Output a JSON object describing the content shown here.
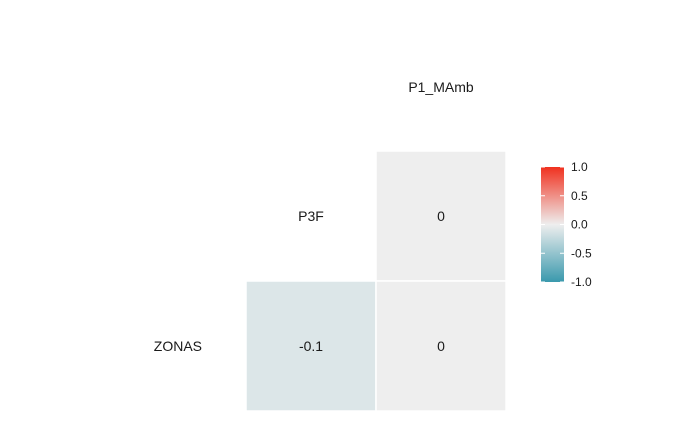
{
  "chart_data": {
    "type": "heatmap",
    "title": "",
    "variables": [
      "P1_MAmb",
      "P3F",
      "ZONAS"
    ],
    "cells": [
      {
        "row": "P3F",
        "col": "P1_MAmb",
        "value": 0,
        "label": "0"
      },
      {
        "row": "ZONAS",
        "col": "P3F",
        "value": -0.1,
        "label": "-0.1"
      },
      {
        "row": "ZONAS",
        "col": "P1_MAmb",
        "value": 0,
        "label": "0"
      }
    ],
    "color_scale": {
      "low": "#3a99ad",
      "mid": "#eeeeee",
      "high": "#f0311f",
      "range": [
        -1,
        1
      ],
      "ticks": [
        {
          "value": 1,
          "label": "1.0"
        },
        {
          "value": 0.5,
          "label": "0.5"
        },
        {
          "value": 0,
          "label": "0.0"
        },
        {
          "value": -0.5,
          "label": "-0.5"
        },
        {
          "value": -1,
          "label": "-1.0"
        }
      ]
    },
    "legend": "right"
  }
}
